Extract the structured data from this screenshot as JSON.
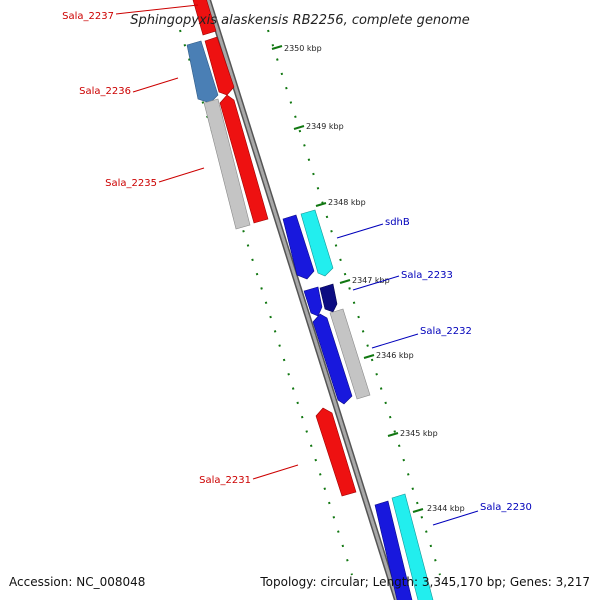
{
  "title": "Sphingopyxis alaskensis RB2256, complete genome",
  "footer": {
    "accession": "Accession: NC_008048",
    "topology": "Topology: circular; Length: 3,345,170 bp; Genes: 3,217"
  },
  "colors": {
    "red": "#ee1111",
    "gray": "#c4c4c4",
    "steelblue": "#4a7fb5",
    "blue": "#1818dd",
    "cyan": "#22eeee",
    "navy": "#0c0c82",
    "tick": "#117711",
    "backbone": "#7a7a7a",
    "label_red": "#cc0000",
    "label_blue": "#0000bb"
  },
  "gene_labels": [
    {
      "key": "Sala_2237",
      "text": "Sala_2237",
      "side": "left"
    },
    {
      "key": "Sala_2236",
      "text": "Sala_2236",
      "side": "left"
    },
    {
      "key": "Sala_2235",
      "text": "Sala_2235",
      "side": "left"
    },
    {
      "key": "sdhB",
      "text": "sdhB",
      "side": "right"
    },
    {
      "key": "Sala_2233",
      "text": "Sala_2233",
      "side": "right"
    },
    {
      "key": "Sala_2232",
      "text": "Sala_2232",
      "side": "right"
    },
    {
      "key": "Sala_2231",
      "text": "Sala_2231",
      "side": "left"
    },
    {
      "key": "Sala_2230",
      "text": "Sala_2230",
      "side": "right"
    }
  ],
  "kbp_labels": [
    "2350 kbp",
    "2349 kbp",
    "2348 kbp",
    "2347 kbp",
    "2346 kbp",
    "2345 kbp",
    "2344 kbp"
  ]
}
